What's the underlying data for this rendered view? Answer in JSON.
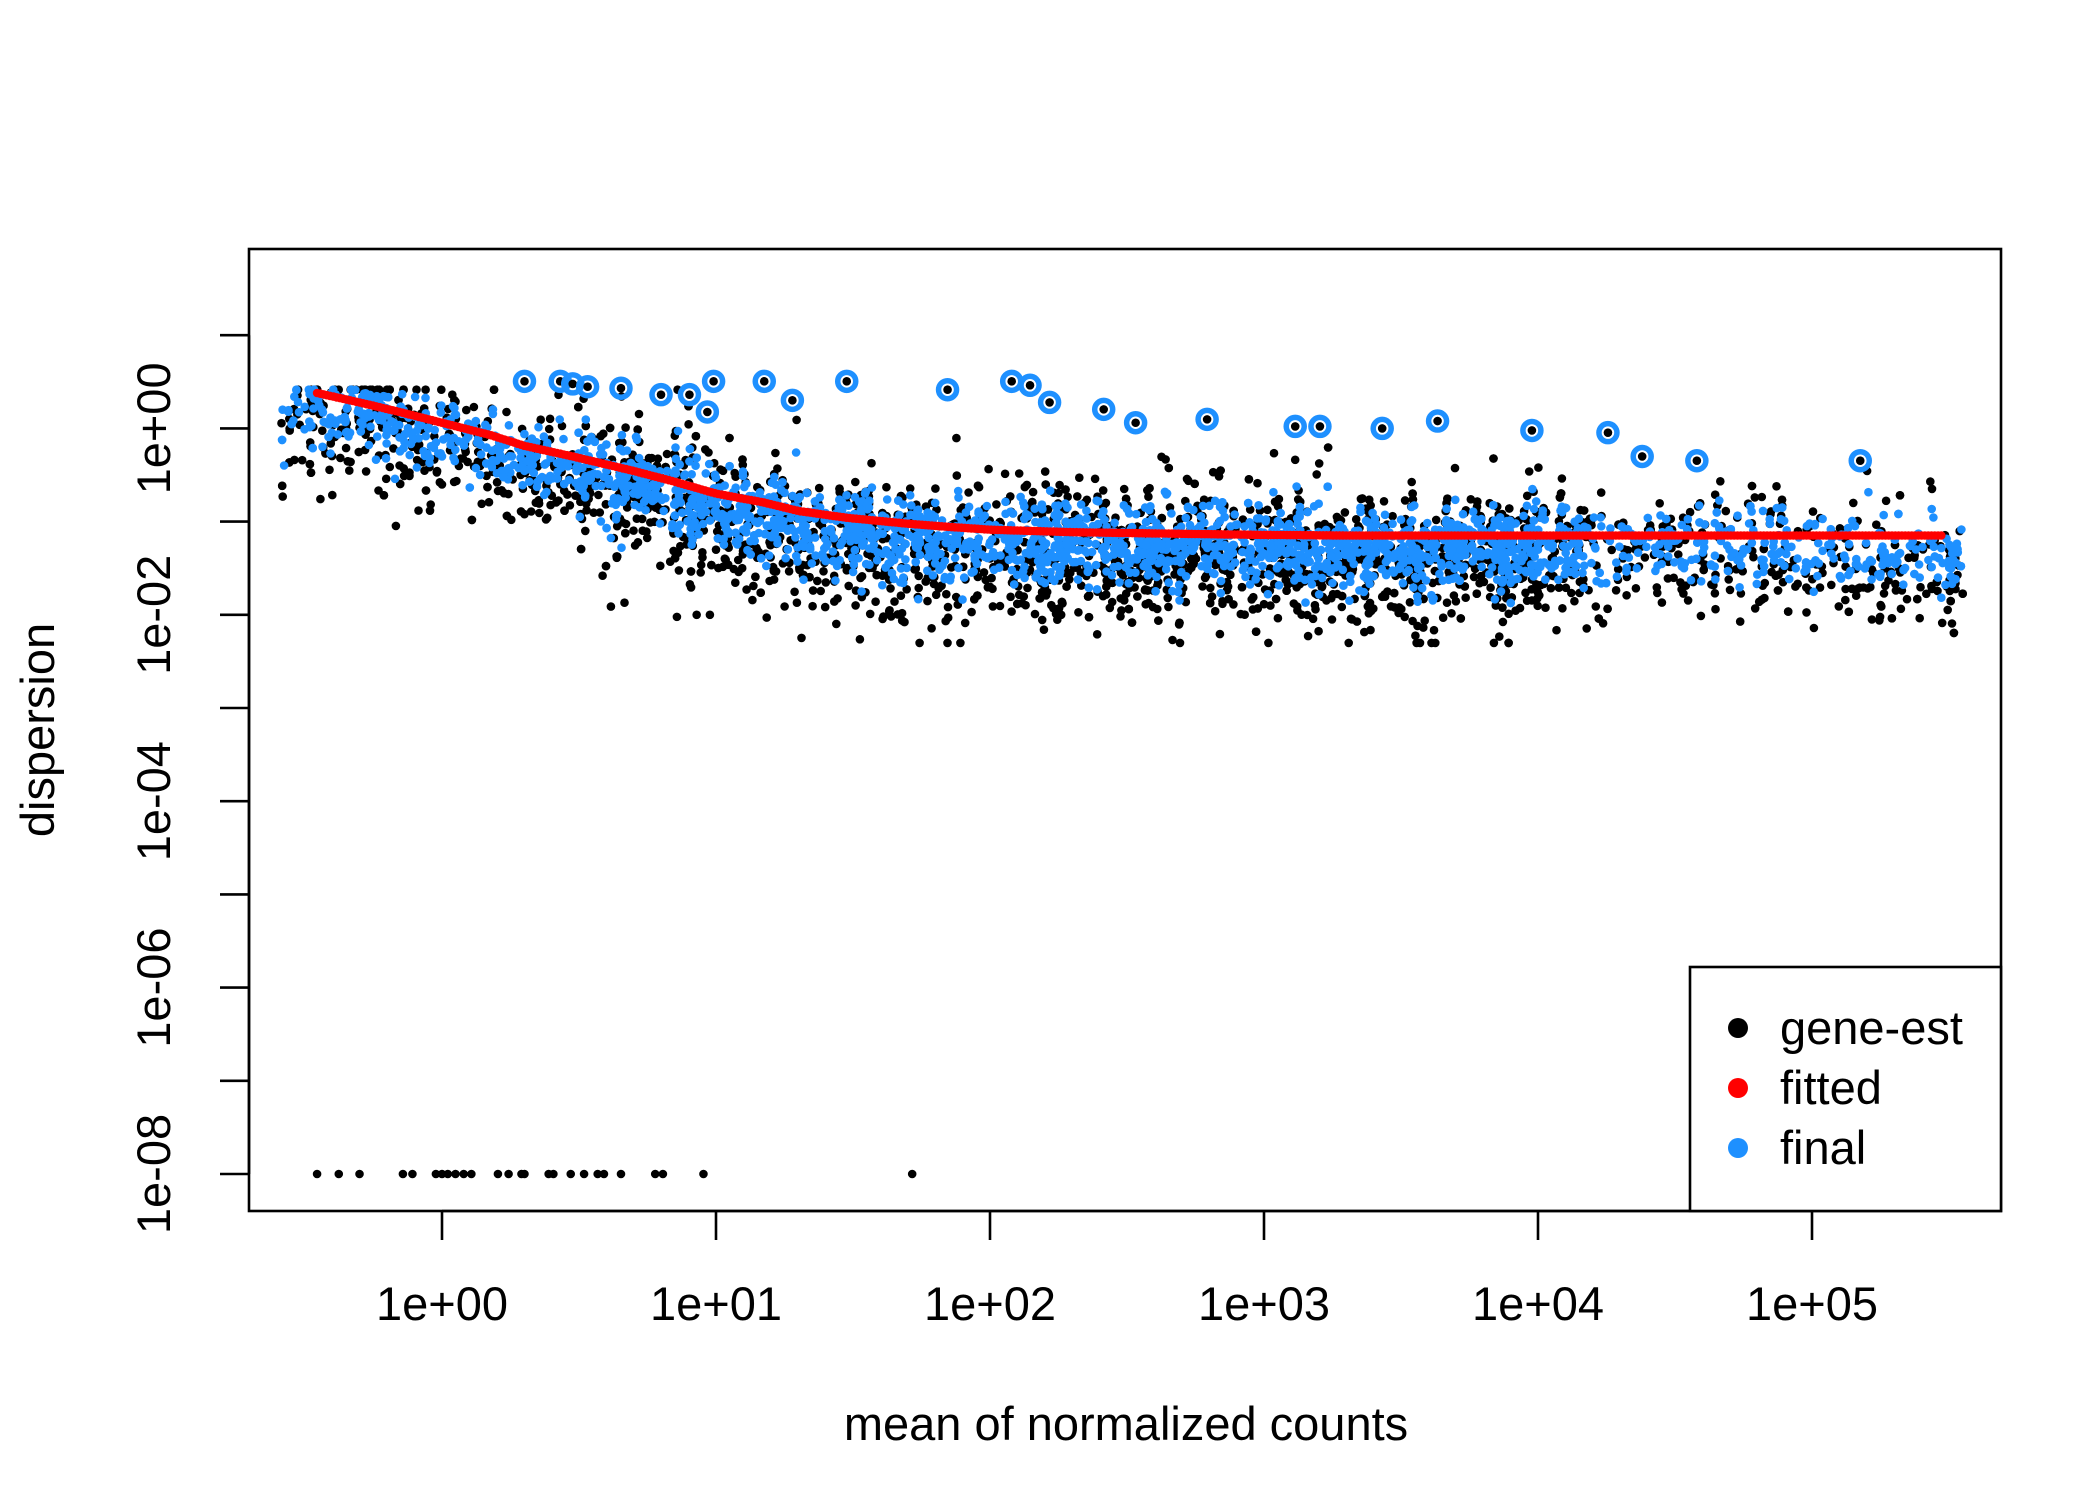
{
  "chart_data": {
    "type": "scatter",
    "xlabel": "mean of normalized counts",
    "ylabel": "dispersion",
    "x_scale": "log10",
    "y_scale": "log10",
    "xlim": [
      0.25,
      350000
    ],
    "ylim": [
      5e-09,
      25
    ],
    "x_ticks": [
      {
        "value": 1,
        "label": "1e+00"
      },
      {
        "value": 10,
        "label": "1e+01"
      },
      {
        "value": 100,
        "label": "1e+02"
      },
      {
        "value": 1000,
        "label": "1e+03"
      },
      {
        "value": 10000,
        "label": "1e+04"
      },
      {
        "value": 100000,
        "label": "1e+05"
      }
    ],
    "y_ticks": [
      {
        "value": 1e-08,
        "label": "1e-08",
        "labeled": true
      },
      {
        "value": 1e-07,
        "label": "",
        "labeled": false
      },
      {
        "value": 1e-06,
        "label": "1e-06",
        "labeled": true
      },
      {
        "value": 1e-05,
        "label": "",
        "labeled": false
      },
      {
        "value": 0.0001,
        "label": "1e-04",
        "labeled": true
      },
      {
        "value": 0.001,
        "label": "",
        "labeled": false
      },
      {
        "value": 0.01,
        "label": "1e-02",
        "labeled": true
      },
      {
        "value": 0.1,
        "label": "",
        "labeled": false
      },
      {
        "value": 1,
        "label": "1e+00",
        "labeled": true
      },
      {
        "value": 10,
        "label": "",
        "labeled": false
      }
    ],
    "legend": {
      "position": "bottom-right",
      "entries": [
        {
          "name": "gene-est",
          "color": "#000000"
        },
        {
          "name": "fitted",
          "color": "#ff0000"
        },
        {
          "name": "final",
          "color": "#1e90ff"
        }
      ]
    },
    "series": [
      {
        "name": "fitted",
        "color": "#ff0000",
        "points": [
          [
            0.35,
            2.4
          ],
          [
            0.5,
            1.9
          ],
          [
            0.7,
            1.5
          ],
          [
            1,
            1.15
          ],
          [
            1.5,
            0.85
          ],
          [
            2,
            0.65
          ],
          [
            3,
            0.5
          ],
          [
            5,
            0.35
          ],
          [
            7,
            0.27
          ],
          [
            10,
            0.2
          ],
          [
            15,
            0.16
          ],
          [
            20,
            0.13
          ],
          [
            30,
            0.11
          ],
          [
            50,
            0.095
          ],
          [
            70,
            0.088
          ],
          [
            100,
            0.082
          ],
          [
            200,
            0.077
          ],
          [
            500,
            0.074
          ],
          [
            1000,
            0.072
          ],
          [
            2000,
            0.071
          ],
          [
            5000,
            0.071
          ],
          [
            10000,
            0.071
          ],
          [
            50000,
            0.071
          ],
          [
            300000,
            0.071
          ]
        ]
      },
      {
        "name": "gene-est zero-dispersion points",
        "color": "#000000",
        "points": [
          [
            0.35,
            1e-08
          ],
          [
            0.42,
            1e-08
          ],
          [
            0.5,
            1e-08
          ],
          [
            0.72,
            1e-08
          ],
          [
            0.78,
            1e-08
          ],
          [
            0.95,
            1e-08
          ],
          [
            1.0,
            1e-08
          ],
          [
            1.05,
            1e-08
          ],
          [
            1.12,
            1e-08
          ],
          [
            1.2,
            1e-08
          ],
          [
            1.28,
            1e-08
          ],
          [
            1.6,
            1e-08
          ],
          [
            1.75,
            1e-08
          ],
          [
            1.95,
            1e-08
          ],
          [
            2.0,
            1e-08
          ],
          [
            2.45,
            1e-08
          ],
          [
            2.55,
            1e-08
          ],
          [
            2.95,
            1e-08
          ],
          [
            3.3,
            1e-08
          ],
          [
            3.7,
            1e-08
          ],
          [
            3.9,
            1e-08
          ],
          [
            4.5,
            1e-08
          ],
          [
            6.0,
            1e-08
          ],
          [
            6.4,
            1e-08
          ],
          [
            9.0,
            1e-08
          ],
          [
            52,
            1e-08
          ]
        ]
      },
      {
        "name": "gene-est isolated low points",
        "color": "#000000",
        "points": [
          [
            7.2,
            0.0095
          ],
          [
            8.5,
            0.01
          ],
          [
            9.5,
            0.01
          ]
        ]
      },
      {
        "name": "outliers (gene-est circled by final)",
        "color": "#1e90ff",
        "points": [
          [
            2.0,
            3.2
          ],
          [
            2.7,
            3.2
          ],
          [
            3.0,
            3.0
          ],
          [
            3.4,
            2.8
          ],
          [
            4.5,
            2.7
          ],
          [
            6.3,
            2.3
          ],
          [
            8.0,
            2.3
          ],
          [
            9.8,
            3.2
          ],
          [
            15,
            3.2
          ],
          [
            19,
            2.0
          ],
          [
            30,
            3.2
          ],
          [
            9.3,
            1.5
          ],
          [
            70,
            2.6
          ],
          [
            120,
            3.2
          ],
          [
            140,
            2.9
          ],
          [
            165,
            1.9
          ],
          [
            260,
            1.6
          ],
          [
            340,
            1.15
          ],
          [
            620,
            1.25
          ],
          [
            1300,
            1.05
          ],
          [
            1600,
            1.05
          ],
          [
            2700,
            1.0
          ],
          [
            4300,
            1.2
          ],
          [
            9500,
            0.95
          ],
          [
            18000,
            0.9
          ],
          [
            24000,
            0.5
          ],
          [
            38000,
            0.45
          ],
          [
            150000,
            0.45
          ]
        ]
      },
      {
        "name": "gene-est cloud (sampled)",
        "color": "#000000",
        "description_points": [
          [
            0.7,
            0.4
          ],
          [
            1,
            0.25
          ],
          [
            2,
            0.12
          ],
          [
            5,
            0.08
          ],
          [
            10,
            0.05
          ],
          [
            30,
            0.03
          ],
          [
            100,
            0.02
          ],
          [
            300,
            0.015
          ],
          [
            1000,
            0.013
          ],
          [
            3000,
            0.012
          ],
          [
            10000,
            0.02
          ],
          [
            50000,
            0.03
          ],
          [
            200000,
            0.04
          ]
        ]
      },
      {
        "name": "final cloud (sampled)",
        "color": "#1e90ff",
        "description_points": [
          [
            0.7,
            0.8
          ],
          [
            1,
            0.5
          ],
          [
            2,
            0.35
          ],
          [
            5,
            0.2
          ],
          [
            10,
            0.15
          ],
          [
            30,
            0.08
          ],
          [
            100,
            0.06
          ],
          [
            300,
            0.05
          ],
          [
            1000,
            0.045
          ],
          [
            3000,
            0.045
          ],
          [
            10000,
            0.05
          ],
          [
            50000,
            0.05
          ],
          [
            200000,
            0.04
          ]
        ]
      }
    ]
  }
}
